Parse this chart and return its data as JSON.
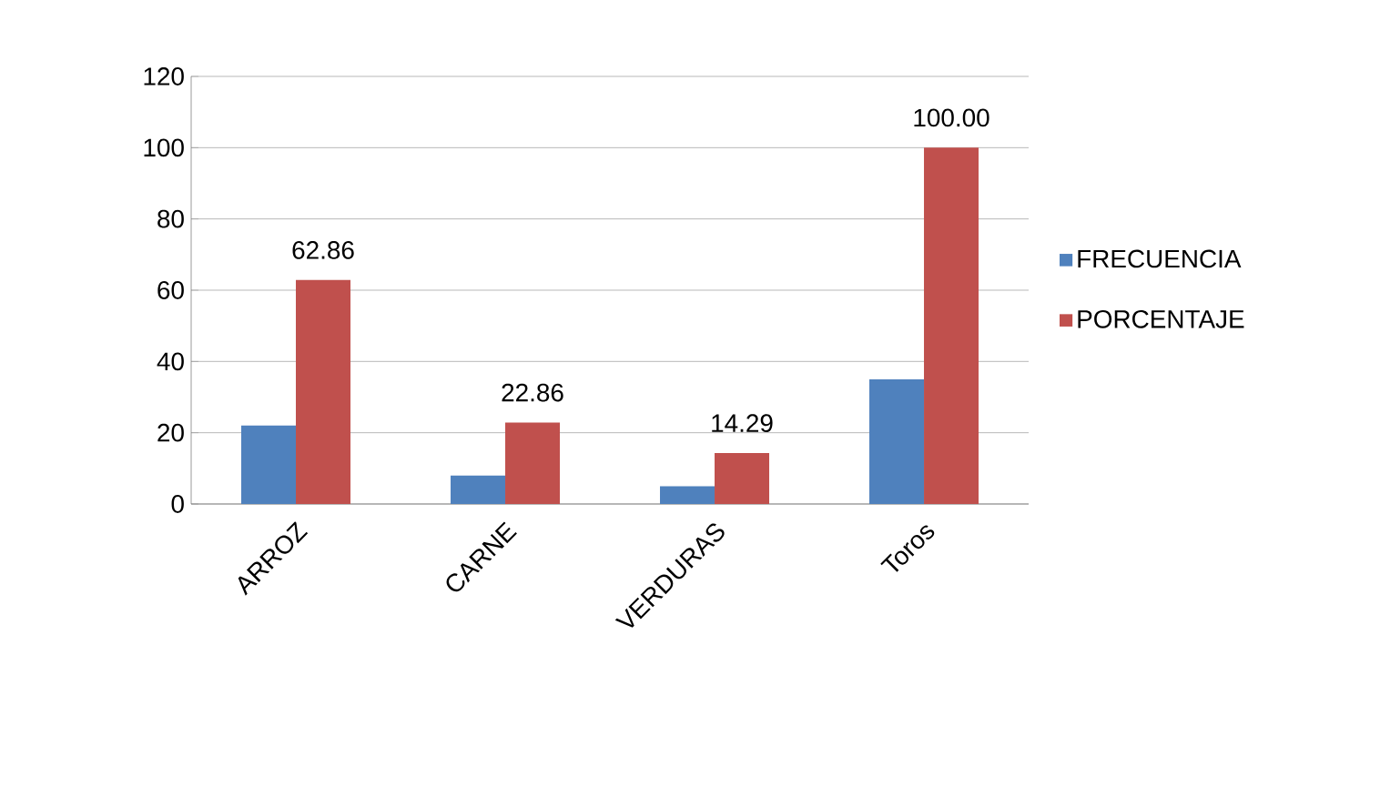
{
  "chart_data": {
    "type": "bar",
    "categories": [
      "ARROZ",
      "CARNE",
      "VERDURAS",
      "Toros"
    ],
    "series": [
      {
        "name": "FRECUENCIA",
        "color": "#4f81bd",
        "values": [
          22,
          8,
          5,
          35
        ]
      },
      {
        "name": "PORCENTAJE",
        "color": "#c0504d",
        "values": [
          62.86,
          22.86,
          14.29,
          100.0
        ],
        "value_labels": [
          "62.86",
          "22.86",
          "14.29",
          "100.00"
        ]
      }
    ],
    "ylim": [
      0,
      120
    ],
    "yticks": [
      0,
      20,
      40,
      60,
      80,
      100,
      120
    ],
    "grid": "y",
    "legend": "right"
  }
}
